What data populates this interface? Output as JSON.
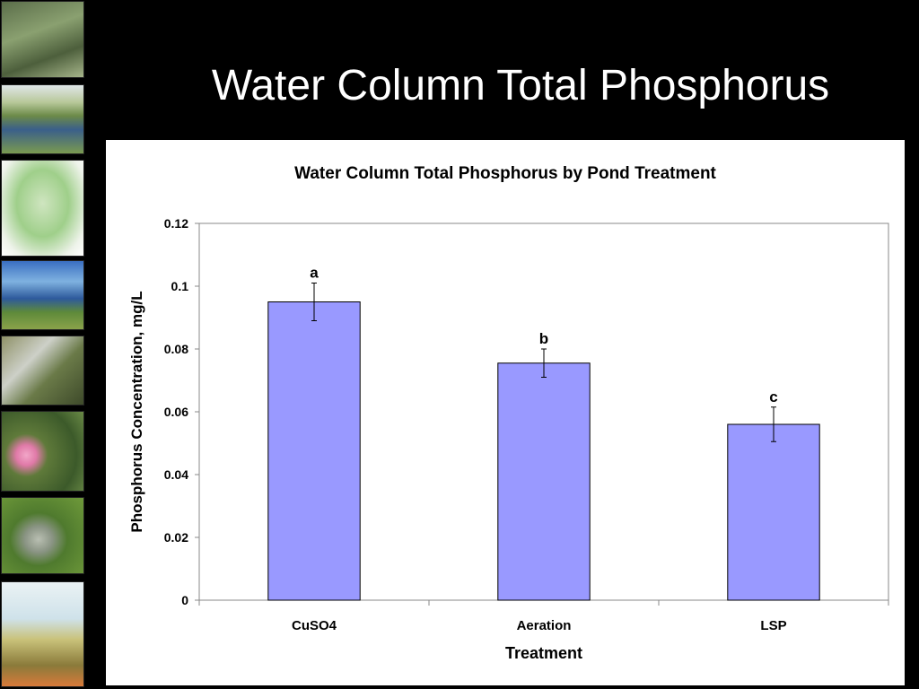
{
  "slide": {
    "title": "Water Column Total Phosphorus"
  },
  "sidebar_photos": [
    {
      "name": "algae-pond-photo"
    },
    {
      "name": "wetland-pond-photo"
    },
    {
      "name": "site-map-photo"
    },
    {
      "name": "lake-landscape-photo"
    },
    {
      "name": "field-worker-photo"
    },
    {
      "name": "water-lily-photo"
    },
    {
      "name": "fish-on-grass-photo"
    },
    {
      "name": "water-sample-jar-photo"
    }
  ],
  "chart_data": {
    "type": "bar",
    "title": "Water Column Total Phosphorus by Pond Treatment",
    "xlabel": "Treatment",
    "ylabel": "Phosphorus Concentration, mg/L",
    "categories": [
      "CuSO4",
      "Aeration",
      "LSP"
    ],
    "values": [
      0.095,
      0.0755,
      0.056
    ],
    "error": [
      0.006,
      0.0045,
      0.0055
    ],
    "significance_labels": [
      "a",
      "b",
      "c"
    ],
    "ylim": [
      0,
      0.12
    ],
    "yticks": [
      "0",
      "0.02",
      "0.04",
      "0.06",
      "0.08",
      "0.1",
      "0.12"
    ],
    "ytick_values": [
      0,
      0.02,
      0.04,
      0.06,
      0.08,
      0.1,
      0.12
    ],
    "bar_color": "#9999ff",
    "grid": false,
    "legend": "none"
  }
}
